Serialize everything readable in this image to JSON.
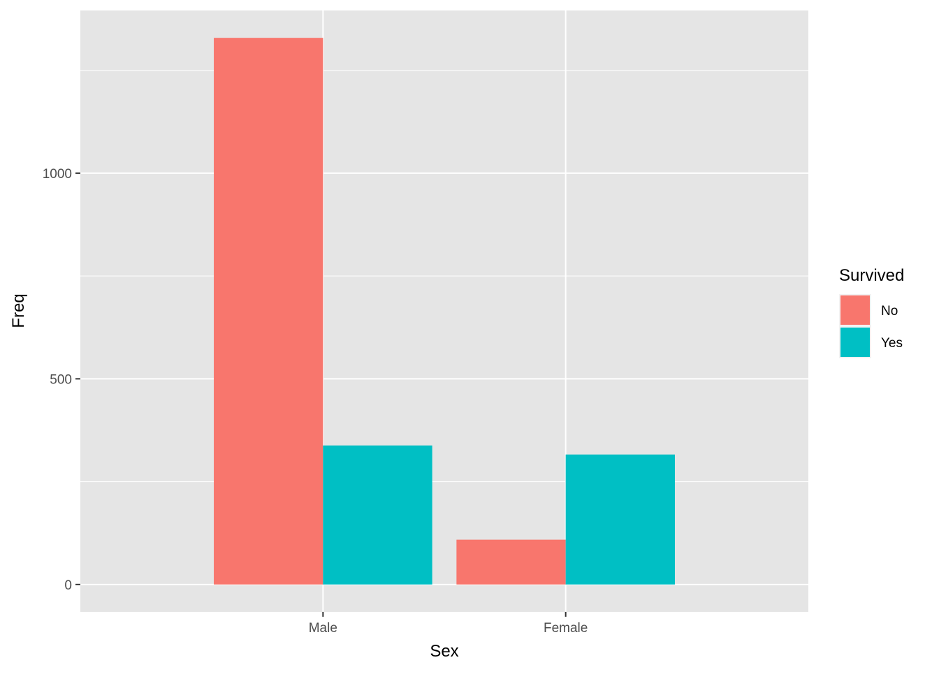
{
  "chart_data": {
    "type": "bar",
    "xlabel": "Sex",
    "ylabel": "Freq",
    "categories": [
      "Male",
      "Female"
    ],
    "series": [
      {
        "name": "No",
        "values": [
          1329,
          109
        ]
      },
      {
        "name": "Yes",
        "values": [
          338,
          316
        ]
      }
    ],
    "ylim": [
      -66.5,
      1395.5
    ],
    "yticks": [
      0,
      500,
      1000
    ],
    "ytick_labels": [
      "0",
      "500",
      "1000"
    ],
    "y_minor_gridlines": [
      250,
      750,
      1250
    ],
    "legend": {
      "title": "Survived",
      "position": "right",
      "entries": [
        "No",
        "Yes"
      ]
    },
    "colors": {
      "No": "#F8766D",
      "Yes": "#00BFC4",
      "panel_background": "#E5E5E5",
      "gridline": "#FFFFFF"
    },
    "grid": true
  }
}
